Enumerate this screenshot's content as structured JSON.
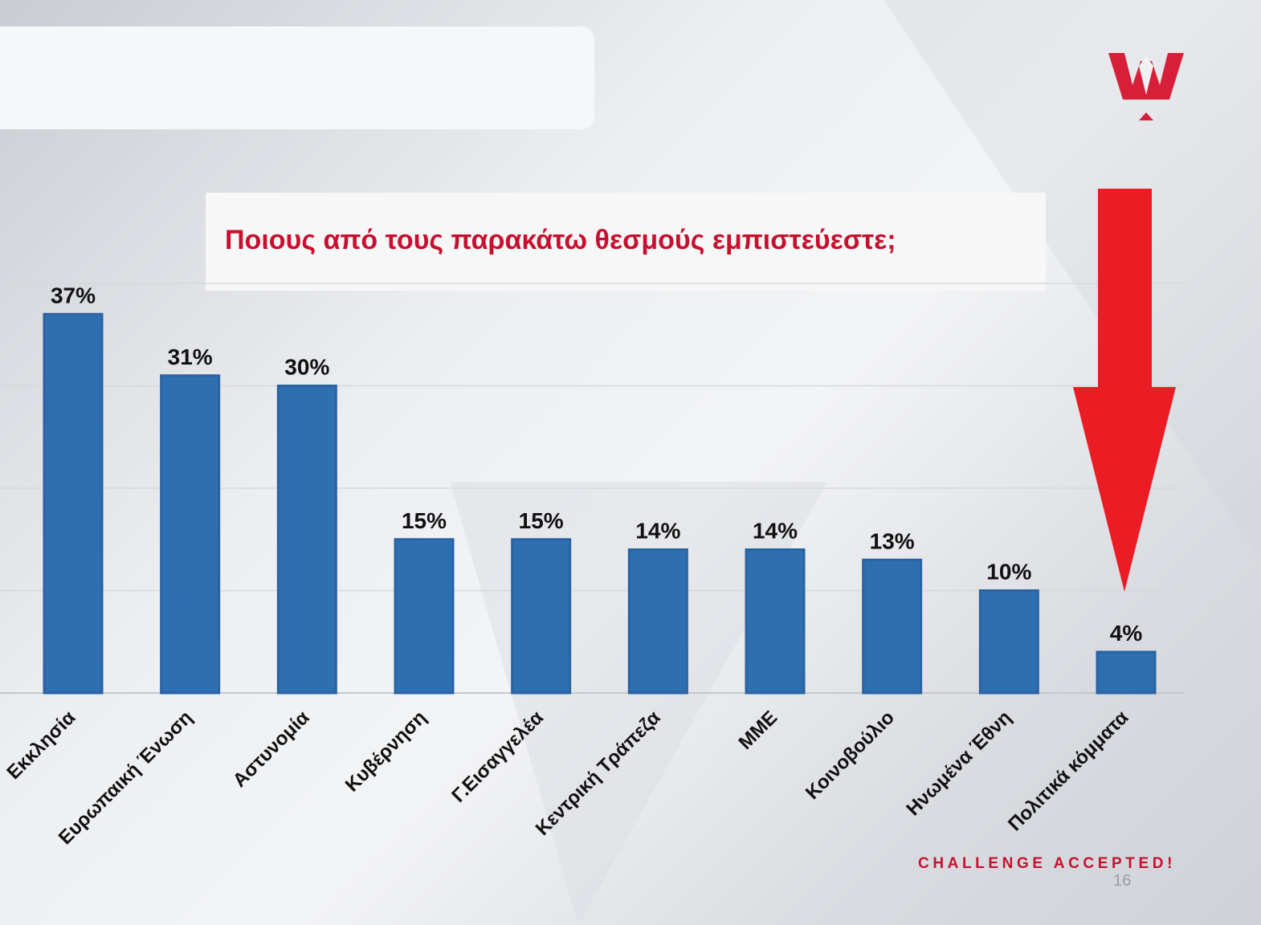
{
  "slide": {
    "question": "Ποιους από τους παρακάτω θεσμούς εμπιστεύεστε;",
    "tagline": "CHALLENGE ACCEPTED!",
    "page_number": "16",
    "logo_icon": "w-crown-logo-icon",
    "arrow_icon": "red-down-arrow-icon",
    "colors": {
      "bar": "#2e6fb2",
      "accent": "#c8102e",
      "arrow": "#ec1c24"
    }
  },
  "chart_data": {
    "type": "bar",
    "categories": [
      "Εκκλησία",
      "Ευρωπαική Ένωση",
      "Αστυνομία",
      "Κυβέρνηση",
      "Γ.Εισαγγελέα",
      "Κεντρική Τράπεζα",
      "ΜΜΕ",
      "Κοινοβούλιο",
      "Ηνωμένα Έθνη",
      "Πολιτικά κόμματα"
    ],
    "values": [
      37,
      31,
      30,
      15,
      15,
      14,
      14,
      13,
      10,
      4
    ],
    "data_labels": [
      "37%",
      "31%",
      "30%",
      "15%",
      "15%",
      "14%",
      "14%",
      "13%",
      "10%",
      "4%"
    ],
    "title": "",
    "xlabel": "",
    "ylabel": "",
    "ylim": [
      0,
      40
    ],
    "grid": true,
    "legend": "none"
  }
}
